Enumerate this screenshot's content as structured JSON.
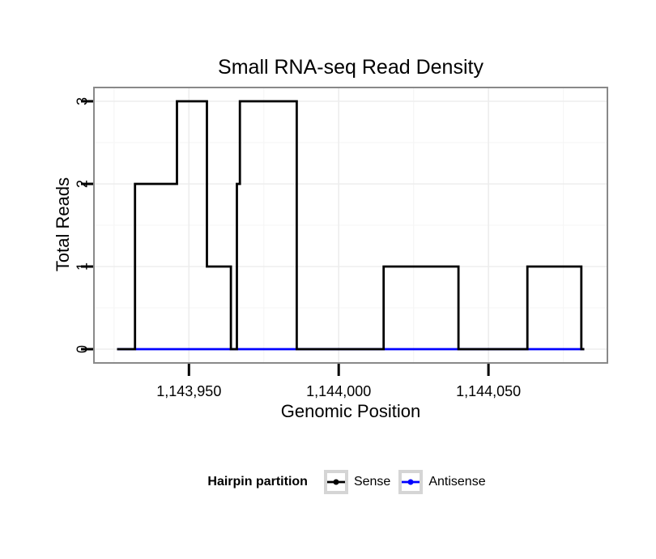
{
  "chart_data": {
    "type": "line",
    "subtype": "step",
    "title": "Small RNA-seq Read Density",
    "xlabel": "Genomic Position",
    "ylabel": "Total Reads",
    "xlim": [
      1143926,
      1144082
    ],
    "ylim": [
      0,
      3
    ],
    "grid": true,
    "legend_position": "bottom",
    "x_ticks": [
      {
        "value": 1143950,
        "label": "1,143,950"
      },
      {
        "value": 1144000,
        "label": "1,144,000"
      },
      {
        "value": 1144050,
        "label": "1,144,050"
      }
    ],
    "y_ticks": [
      {
        "value": 0,
        "label": "0"
      },
      {
        "value": 1,
        "label": "1"
      },
      {
        "value": 2,
        "label": "2"
      },
      {
        "value": 3,
        "label": "3"
      }
    ],
    "x_minor_gridlines": [
      1143925,
      1143975,
      1144025,
      1144075
    ],
    "y_minor_gridlines": [
      0.5,
      1.5,
      2.5
    ],
    "series": [
      {
        "name": "Sense",
        "color": "#000000",
        "step_points": [
          [
            1143926,
            0
          ],
          [
            1143932,
            2
          ],
          [
            1143946,
            3
          ],
          [
            1143956,
            1
          ],
          [
            1143964,
            0
          ],
          [
            1143966,
            2
          ],
          [
            1143967,
            3
          ],
          [
            1143986,
            0
          ],
          [
            1144015,
            1
          ],
          [
            1144040,
            0
          ],
          [
            1144063,
            1
          ],
          [
            1144081,
            0
          ]
        ],
        "x_end": 1144082
      },
      {
        "name": "Antisense",
        "color": "#0000ff",
        "step_points": [
          [
            1143926,
            0
          ]
        ],
        "x_end": 1144082
      }
    ]
  },
  "legend": {
    "title": "Hairpin partition",
    "entries": [
      {
        "name": "sense",
        "label": "Sense",
        "color": "#000000"
      },
      {
        "name": "antisense",
        "label": "Antisense",
        "color": "#0000ff"
      }
    ]
  },
  "colors": {
    "panel_border": "#898989",
    "grid_major": "#ededed",
    "grid_minor": "#f6f6f6",
    "tick": "#000000",
    "text": "#000000",
    "legend_key_border": "#d5d5d5"
  }
}
